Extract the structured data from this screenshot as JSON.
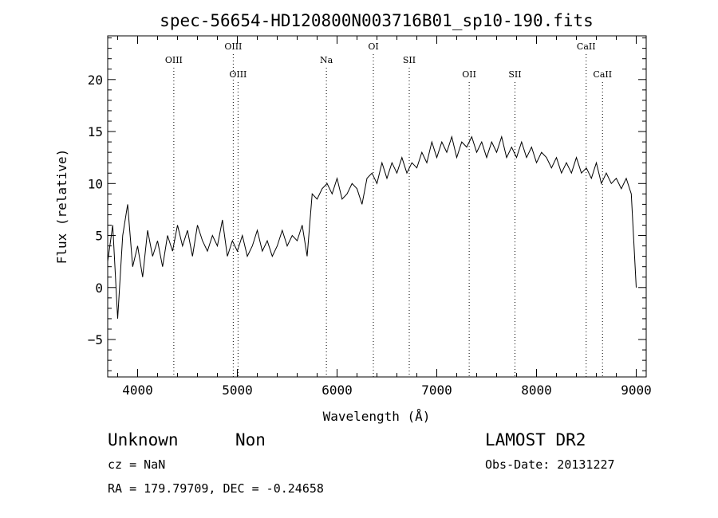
{
  "chart_data": {
    "type": "line",
    "title": "spec-56654-HD120800N003716B01_sp10-190.fits",
    "xlabel": "Wavelength (Å)",
    "ylabel": "Flux (relative)",
    "xlim": [
      3700,
      9100
    ],
    "ylim": [
      -8.6,
      24.2
    ],
    "xticks": [
      4000,
      5000,
      6000,
      7000,
      8000,
      9000
    ],
    "yticks": [
      -5,
      0,
      5,
      10,
      15,
      20
    ],
    "grid": false,
    "series": [
      {
        "color": "#000000",
        "x": [
          3700,
          3750,
          3800,
          3850,
          3900,
          3950,
          4000,
          4050,
          4100,
          4150,
          4200,
          4250,
          4300,
          4350,
          4400,
          4450,
          4500,
          4550,
          4600,
          4650,
          4700,
          4750,
          4800,
          4850,
          4900,
          4950,
          5000,
          5050,
          5100,
          5150,
          5200,
          5250,
          5300,
          5350,
          5400,
          5450,
          5500,
          5550,
          5600,
          5650,
          5700,
          5750,
          5800,
          5850,
          5900,
          5950,
          6000,
          6050,
          6100,
          6150,
          6200,
          6250,
          6300,
          6350,
          6400,
          6450,
          6500,
          6550,
          6600,
          6650,
          6700,
          6750,
          6800,
          6850,
          6900,
          6950,
          7000,
          7050,
          7100,
          7150,
          7200,
          7250,
          7300,
          7350,
          7400,
          7450,
          7500,
          7550,
          7600,
          7650,
          7700,
          7750,
          7800,
          7850,
          7900,
          7950,
          8000,
          8050,
          8100,
          8150,
          8200,
          8250,
          8300,
          8350,
          8400,
          8450,
          8500,
          8550,
          8600,
          8650,
          8700,
          8750,
          8800,
          8850,
          8900,
          8950,
          9000
        ],
        "y": [
          2.5,
          6.0,
          -3.0,
          5.0,
          8.0,
          2.0,
          4.0,
          1.0,
          5.5,
          3.0,
          4.5,
          2.0,
          5.0,
          3.5,
          6.0,
          4.0,
          5.5,
          3.0,
          6.0,
          4.5,
          3.5,
          5.0,
          4.0,
          6.5,
          3.0,
          4.5,
          3.5,
          5.0,
          3.0,
          4.0,
          5.5,
          3.5,
          4.5,
          3.0,
          4.0,
          5.5,
          4.0,
          5.0,
          4.5,
          6.0,
          3.0,
          9.0,
          8.5,
          9.5,
          10.0,
          9.0,
          10.5,
          8.5,
          9.0,
          10.0,
          9.5,
          8.0,
          10.5,
          11.0,
          10.0,
          12.0,
          10.5,
          12.0,
          11.0,
          12.5,
          11.0,
          12.0,
          11.5,
          13.0,
          12.0,
          14.0,
          12.5,
          14.0,
          13.0,
          14.5,
          12.5,
          14.0,
          13.5,
          14.5,
          13.0,
          14.0,
          12.5,
          14.0,
          13.0,
          14.5,
          12.5,
          13.5,
          12.5,
          14.0,
          12.5,
          13.5,
          12.0,
          13.0,
          12.5,
          11.5,
          12.5,
          11.0,
          12.0,
          11.0,
          12.5,
          11.0,
          11.5,
          10.5,
          12.0,
          10.0,
          11.0,
          10.0,
          10.5,
          9.5,
          10.5,
          9.0,
          0.0
        ]
      }
    ],
    "lines": [
      {
        "label": "OIII",
        "x": 4363,
        "label_row": 2
      },
      {
        "label": "OIII",
        "x": 4959,
        "label_row": 1
      },
      {
        "label": "OIII",
        "x": 5007,
        "label_row": 3
      },
      {
        "label": "Na",
        "x": 5893,
        "label_row": 2
      },
      {
        "label": "OI",
        "x": 6364,
        "label_row": 1
      },
      {
        "label": "SII",
        "x": 6724,
        "label_row": 2
      },
      {
        "label": "OII",
        "x": 7325,
        "label_row": 3
      },
      {
        "label": "SII",
        "x": 7784,
        "label_row": 3
      },
      {
        "label": "CaII",
        "x": 8498,
        "label_row": 1
      },
      {
        "label": "CaII",
        "x": 8662,
        "label_row": 3
      }
    ]
  },
  "info": {
    "class": "Unknown",
    "subclass": "Non",
    "survey": "LAMOST DR2",
    "cz": "cz = NaN",
    "obs_date": "Obs-Date: 20131227",
    "coords": "RA = 179.79709, DEC =  -0.24658"
  }
}
